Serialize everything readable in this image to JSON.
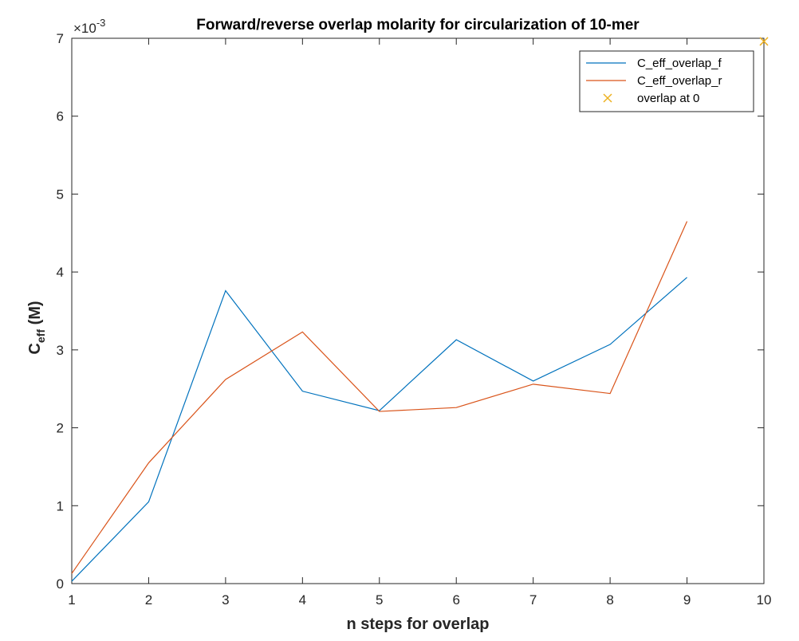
{
  "chart_data": {
    "type": "line",
    "title": "Forward/reverse overlap molarity for circularization of 10-mer",
    "xlabel": "n steps for overlap",
    "ylabel_main": "C",
    "ylabel_sub": "eff",
    "ylabel_unit": " (M)",
    "xlim": [
      1,
      10
    ],
    "ylim": [
      0,
      7
    ],
    "y_multiplier_prefix": "×10",
    "y_multiplier_exponent": "-3",
    "x_ticks": [
      "1",
      "2",
      "3",
      "4",
      "5",
      "6",
      "7",
      "8",
      "9",
      "10"
    ],
    "y_ticks": [
      "0",
      "1",
      "2",
      "3",
      "4",
      "5",
      "6",
      "7"
    ],
    "grid": false,
    "legend_position": "top-right",
    "series": [
      {
        "name": "C_eff_overlap_f",
        "kind": "line",
        "color": "#0072BD",
        "x": [
          1,
          2,
          3,
          4,
          5,
          6,
          7,
          8,
          9
        ],
        "y": [
          0.03,
          1.05,
          3.76,
          2.47,
          2.22,
          3.13,
          2.6,
          3.07,
          3.93
        ]
      },
      {
        "name": "C_eff_overlap_r",
        "kind": "line",
        "color": "#D95319",
        "x": [
          1,
          2,
          3,
          4,
          5,
          6,
          7,
          8,
          9
        ],
        "y": [
          0.13,
          1.55,
          2.62,
          3.23,
          2.21,
          2.26,
          2.56,
          2.44,
          4.65
        ]
      },
      {
        "name": "overlap at 0",
        "kind": "marker",
        "color": "#EDB120",
        "x": [
          10
        ],
        "y": [
          6.96
        ]
      }
    ]
  }
}
